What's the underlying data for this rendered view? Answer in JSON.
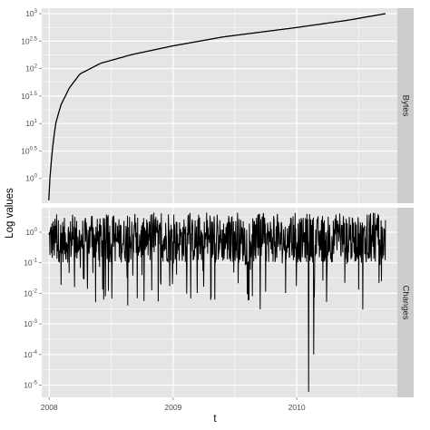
{
  "chart_data": {
    "type": "line",
    "ylabel": "Log values",
    "xlabel": "t",
    "x_axis": {
      "type": "date",
      "range": [
        "2007-12-10",
        "2010-10-25"
      ],
      "ticks": [
        {
          "value": "2008-01-01",
          "label": "2008"
        },
        {
          "value": "2009-01-01",
          "label": "2009"
        },
        {
          "value": "2010-01-01",
          "label": "2010"
        }
      ]
    },
    "grid": true,
    "background": "#e5e5e5",
    "grid_color": "#ffffff",
    "line_color": "#000000",
    "strip_color": "#cccccc",
    "panels": [
      {
        "strip": "Bytes",
        "y_scale": "log10",
        "ylim_exp": [
          -0.45,
          3.1
        ],
        "y_ticks": [
          {
            "exp": 0,
            "base": "10",
            "sup": "0"
          },
          {
            "exp": 0.5,
            "base": "10",
            "sup": "0.5"
          },
          {
            "exp": 1,
            "base": "10",
            "sup": "1"
          },
          {
            "exp": 1.5,
            "base": "10",
            "sup": "1.5"
          },
          {
            "exp": 2,
            "base": "10",
            "sup": "2"
          },
          {
            "exp": 2.5,
            "base": "10",
            "sup": "2.5"
          },
          {
            "exp": 3,
            "base": "10",
            "sup": "3"
          }
        ],
        "series_shape": "cumulative",
        "series": [
          {
            "x": "2007-12-31",
            "y": 0.4
          },
          {
            "x": "2008-01-03",
            "y": 1
          },
          {
            "x": "2008-01-10",
            "y": 3.2
          },
          {
            "x": "2008-01-20",
            "y": 10
          },
          {
            "x": "2008-02-05",
            "y": 22
          },
          {
            "x": "2008-03-01",
            "y": 45
          },
          {
            "x": "2008-04-01",
            "y": 80
          },
          {
            "x": "2008-06-01",
            "y": 125
          },
          {
            "x": "2008-09-01",
            "y": 180
          },
          {
            "x": "2009-01-01",
            "y": 260
          },
          {
            "x": "2009-06-01",
            "y": 380
          },
          {
            "x": "2010-01-01",
            "y": 560
          },
          {
            "x": "2010-06-01",
            "y": 760
          },
          {
            "x": "2010-09-20",
            "y": 1000
          }
        ]
      },
      {
        "strip": "Changes",
        "y_scale": "log10",
        "ylim_exp": [
          -5.4,
          0.8
        ],
        "y_ticks": [
          {
            "exp": 0,
            "base": "10",
            "sup": "0"
          },
          {
            "exp": -1,
            "base": "10",
            "sup": "-1"
          },
          {
            "exp": -2,
            "base": "10",
            "sup": "-2"
          },
          {
            "exp": -3,
            "base": "10",
            "sup": "-3"
          },
          {
            "exp": -4,
            "base": "10",
            "sup": "-4"
          },
          {
            "exp": -5,
            "base": "10",
            "sup": "-5"
          }
        ],
        "series_shape": "noisy",
        "series": {
          "x_start": "2007-12-31",
          "x_end": "2010-09-20",
          "typical_y_range": [
            0.1,
            3
          ],
          "max_y": 4.5,
          "min_y": 6e-06,
          "notable_dips": [
            {
              "x": "2010-02-05",
              "y": 6e-06
            },
            {
              "x": "2010-02-20",
              "y": 0.0001
            },
            {
              "x": "2009-09-15",
              "y": 0.003
            },
            {
              "x": "2010-07-15",
              "y": 0.003
            },
            {
              "x": "2008-08-20",
              "y": 0.004
            }
          ]
        }
      }
    ]
  }
}
